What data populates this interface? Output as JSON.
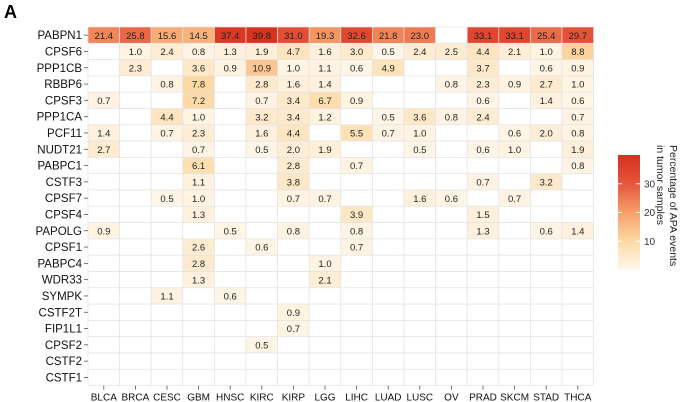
{
  "panel_label": "A",
  "chart_data": {
    "type": "heatmap",
    "panel": "A",
    "rows": [
      "PABPN1",
      "CPSF6",
      "PPP1CB",
      "RBBP6",
      "CPSF3",
      "PPP1CA",
      "PCF11",
      "NUDT21",
      "PABPC1",
      "CSTF3",
      "CPSF7",
      "CPSF4",
      "PAPOLG",
      "CPSF1",
      "PABPC4",
      "WDR33",
      "SYMPK",
      "CSTF2T",
      "FIP1L1",
      "CPSF2",
      "CSTF2",
      "CSTF1"
    ],
    "columns": [
      "BLCA",
      "BRCA",
      "CESC",
      "GBM",
      "HNSC",
      "KIRC",
      "KIRP",
      "LGG",
      "LIHC",
      "LUAD",
      "LUSC",
      "OV",
      "PRAD",
      "SKCM",
      "STAD",
      "THCA"
    ],
    "values": [
      [
        21.4,
        25.8,
        15.6,
        14.5,
        37.4,
        39.8,
        31.0,
        19.3,
        32.6,
        21.8,
        23.0,
        null,
        33.1,
        33.1,
        25.4,
        29.7
      ],
      [
        null,
        1.0,
        2.4,
        0.8,
        1.3,
        1.9,
        4.7,
        1.6,
        3.0,
        0.5,
        2.4,
        2.5,
        4.4,
        2.1,
        1.0,
        8.8
      ],
      [
        null,
        2.3,
        null,
        3.6,
        0.9,
        10.9,
        1.0,
        1.1,
        0.6,
        4.9,
        null,
        null,
        3.7,
        null,
        0.6,
        0.9
      ],
      [
        null,
        null,
        0.8,
        7.8,
        null,
        2.8,
        1.6,
        1.4,
        null,
        null,
        null,
        0.8,
        2.3,
        0.9,
        2.7,
        1.0
      ],
      [
        0.7,
        null,
        null,
        7.2,
        null,
        0.7,
        3.4,
        6.7,
        0.9,
        null,
        null,
        null,
        0.6,
        null,
        1.4,
        0.6
      ],
      [
        null,
        null,
        4.4,
        1.0,
        null,
        3.2,
        3.4,
        1.2,
        null,
        0.5,
        3.6,
        0.8,
        2.4,
        null,
        null,
        0.7
      ],
      [
        1.4,
        null,
        0.7,
        2.3,
        null,
        1.6,
        4.4,
        null,
        5.5,
        0.7,
        1.0,
        null,
        null,
        0.6,
        2.0,
        0.8
      ],
      [
        2.7,
        null,
        null,
        0.7,
        null,
        0.5,
        2.0,
        1.9,
        null,
        null,
        0.5,
        null,
        0.6,
        1.0,
        null,
        1.9
      ],
      [
        null,
        null,
        null,
        6.1,
        null,
        null,
        2.8,
        null,
        0.7,
        null,
        null,
        null,
        null,
        null,
        null,
        0.8
      ],
      [
        null,
        null,
        null,
        1.1,
        null,
        null,
        3.8,
        null,
        null,
        null,
        null,
        null,
        0.7,
        null,
        3.2,
        null
      ],
      [
        null,
        null,
        0.5,
        1.0,
        null,
        null,
        0.7,
        0.7,
        null,
        null,
        1.6,
        0.6,
        null,
        0.7,
        null,
        null
      ],
      [
        null,
        null,
        null,
        1.3,
        null,
        null,
        null,
        null,
        3.9,
        null,
        null,
        null,
        1.5,
        null,
        null,
        null
      ],
      [
        0.9,
        null,
        null,
        null,
        0.5,
        null,
        0.8,
        null,
        0.8,
        null,
        null,
        null,
        1.3,
        null,
        0.6,
        1.4
      ],
      [
        null,
        null,
        null,
        2.6,
        null,
        0.6,
        null,
        null,
        0.7,
        null,
        null,
        null,
        null,
        null,
        null,
        null
      ],
      [
        null,
        null,
        null,
        2.8,
        null,
        null,
        null,
        1.0,
        null,
        null,
        null,
        null,
        null,
        null,
        null,
        null
      ],
      [
        null,
        null,
        null,
        1.3,
        null,
        null,
        null,
        2.1,
        null,
        null,
        null,
        null,
        null,
        null,
        null,
        null
      ],
      [
        null,
        null,
        1.1,
        null,
        0.6,
        null,
        null,
        null,
        null,
        null,
        null,
        null,
        null,
        null,
        null,
        null
      ],
      [
        null,
        null,
        null,
        null,
        null,
        null,
        0.9,
        null,
        null,
        null,
        null,
        null,
        null,
        null,
        null,
        null
      ],
      [
        null,
        null,
        null,
        null,
        null,
        null,
        0.7,
        null,
        null,
        null,
        null,
        null,
        null,
        null,
        null,
        null
      ],
      [
        null,
        null,
        null,
        null,
        null,
        0.5,
        null,
        null,
        null,
        null,
        null,
        null,
        null,
        null,
        null,
        null
      ],
      [
        null,
        null,
        null,
        null,
        null,
        null,
        null,
        null,
        null,
        null,
        null,
        null,
        null,
        null,
        null,
        null
      ],
      [
        null,
        null,
        null,
        null,
        null,
        null,
        null,
        null,
        null,
        null,
        null,
        null,
        null,
        null,
        null,
        null
      ]
    ],
    "colorbar": {
      "title_lines": [
        "Percentage of APA events",
        "in tumor samples"
      ],
      "ticks": [
        10,
        20,
        30
      ],
      "range": [
        0,
        40
      ],
      "colors": [
        "#fff8ee",
        "#fdd9a4",
        "#f6a06a",
        "#e7553c",
        "#d7301f"
      ]
    },
    "grid": true,
    "legend_position": "right"
  }
}
